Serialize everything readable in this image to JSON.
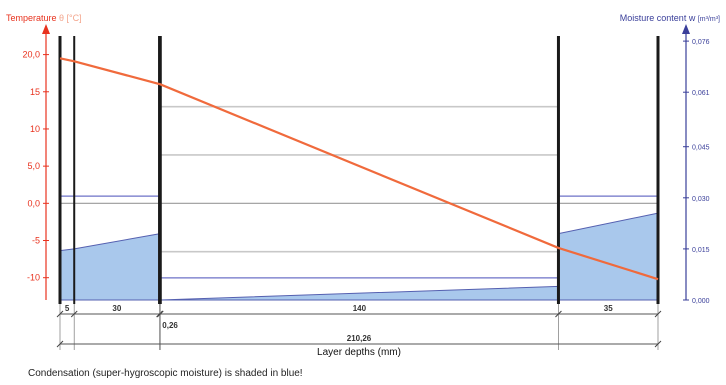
{
  "chart_data": {
    "type": "line",
    "left_axis": {
      "title": "Temperature",
      "symbol": "θ",
      "unit": "[°C]",
      "range": [
        -13,
        22.5
      ],
      "ticks": [
        "20,0",
        "15",
        "10",
        "5,0",
        "0,0",
        "-5",
        "-10"
      ],
      "tick_values": [
        20,
        15,
        10,
        5,
        0,
        -5,
        -10
      ],
      "color": "#e8321e"
    },
    "right_axis": {
      "title": "Moisture content",
      "symbol": "w",
      "unit": "[m³/m³]",
      "range": [
        0.0,
        0.0775
      ],
      "ticks": [
        "0,076",
        "0,061",
        "0,045",
        "0,030",
        "0,015",
        "0,000"
      ],
      "tick_values": [
        0.076,
        0.061,
        0.045,
        0.03,
        0.015,
        0.0
      ],
      "color": "#3a3f9a"
    },
    "x_axis": {
      "label": "Layer depths (mm)",
      "range": [
        0,
        210.26
      ],
      "layer_thicknesses": [
        "5",
        "30",
        "140",
        "35"
      ],
      "thin_layer_label": "0,26",
      "total_label": "210,26"
    },
    "layer_boundaries": [
      0,
      5,
      35,
      35.26,
      175.26,
      210.26
    ],
    "temperature_series": {
      "name": "Temperature",
      "x": [
        0,
        5,
        35.26,
        175.26,
        210.26
      ],
      "y": [
        19.5,
        19.1,
        16.0,
        -6.0,
        -10.2
      ],
      "color": "#f06a3c"
    },
    "condensation_shading": [
      {
        "x": [
          0,
          5,
          35.26
        ],
        "w": [
          0.0145,
          0.015,
          0.0195
        ]
      },
      {
        "x": [
          35.26,
          175.26
        ],
        "w": [
          0.0,
          0.004
        ]
      },
      {
        "x": [
          175.26,
          210.26
        ],
        "w": [
          0.0195,
          0.0255
        ]
      }
    ],
    "saturation_lines_w": [
      {
        "x": [
          0,
          35.26
        ],
        "w": 0.0305
      },
      {
        "x": [
          175.26,
          210.26
        ],
        "w": 0.0305
      },
      {
        "x": [
          35.26,
          175.26
        ],
        "w": 0.0065
      }
    ],
    "grid": true
  },
  "footnote": "Condensation (super-hygroscopic moisture) is shaded in blue!"
}
